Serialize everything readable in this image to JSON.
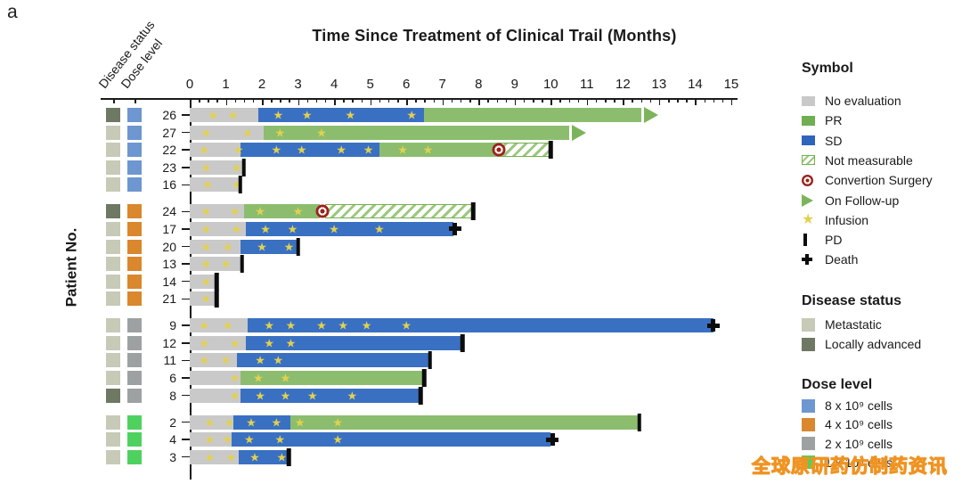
{
  "panel_label": "a",
  "title": "Time Since Treatment of Clinical Trail (Months)",
  "y_axis_label": "Patient No.",
  "column_headers": [
    "Disease status",
    "Dose level"
  ],
  "watermark": "全球原研药仿制药资讯",
  "colors": {
    "no_evaluation": "#c9c9c9",
    "pr": "#8cbd6f",
    "sd": "#3a70c2",
    "legend_pr": "#6fae51",
    "legend_sd": "#2f64bb",
    "infusion_star": "#e3d14e",
    "surgery_red": "#9b231c",
    "followup_green": "#7cb45c",
    "disease_metastatic": "#c6cab6",
    "disease_locally_advanced": "#6e7863",
    "dose_8e9": "#6e96d0",
    "dose_4e9": "#da872d",
    "dose_2e9": "#9da1a2",
    "dose_1e9": "#4fd15f",
    "marker_black": "#0c0c0c"
  },
  "legend": {
    "symbol": {
      "title": "Symbol",
      "items": [
        {
          "icon": "no-evaluation-swatch",
          "label": "No evaluation"
        },
        {
          "icon": "pr-swatch",
          "label": "PR"
        },
        {
          "icon": "sd-swatch",
          "label": "SD"
        },
        {
          "icon": "not-measurable-swatch",
          "label": "Not measurable"
        },
        {
          "icon": "conversion-surgery-icon",
          "label": "Convertion Surgery"
        },
        {
          "icon": "on-follow-up-icon",
          "label": "On Follow-up"
        },
        {
          "icon": "infusion-star-icon",
          "label": "Infusion"
        },
        {
          "icon": "pd-icon",
          "label": "PD"
        },
        {
          "icon": "death-icon",
          "label": "Death"
        }
      ]
    },
    "disease_status": {
      "title": "Disease status",
      "items": [
        {
          "icon": "metastatic-swatch",
          "label": "Metastatic",
          "color": "#c6cab6"
        },
        {
          "icon": "locally-advanced-swatch",
          "label": "Locally advanced",
          "color": "#6e7863"
        }
      ]
    },
    "dose_level": {
      "title": "Dose level",
      "items": [
        {
          "icon": "dose-8e9-swatch",
          "label": "8 x 10⁹ cells",
          "color": "#6e96d0"
        },
        {
          "icon": "dose-4e9-swatch",
          "label": "4 x 10⁹ cells",
          "color": "#da872d"
        },
        {
          "icon": "dose-2e9-swatch",
          "label": "2 x 10⁹ cells",
          "color": "#9da1a2"
        },
        {
          "icon": "dose-1e9-swatch",
          "label": "1 x 10⁹ cells",
          "color": "#4fd15f"
        }
      ]
    }
  },
  "chart_data": {
    "type": "swimmer-plot",
    "x_axis": {
      "min": 0,
      "max": 15,
      "major_step": 1,
      "minor_step": 0.25,
      "tick_labels": [
        "0",
        "1",
        "2",
        "3",
        "4",
        "5",
        "6",
        "7",
        "8",
        "9",
        "10",
        "11",
        "12",
        "13",
        "14",
        "15"
      ]
    },
    "status_keys": {
      "ne": "no_evaluation",
      "sd": "sd",
      "pr": "pr",
      "nm": "not_measurable"
    },
    "patients": [
      {
        "patient": "26",
        "group": 0,
        "disease": "locally_advanced",
        "dose": "8e9",
        "segments": [
          {
            "s": "ne",
            "a": 0,
            "b": 1.9
          },
          {
            "s": "sd",
            "a": 1.9,
            "b": 6.5
          },
          {
            "s": "pr",
            "a": 6.5,
            "b": 12.5
          }
        ],
        "infusions": [
          0.65,
          1.2,
          2.45,
          3.25,
          4.45,
          6.15
        ],
        "markers": [
          {
            "type": "on_follow_up",
            "x": 12.5
          }
        ]
      },
      {
        "patient": "27",
        "group": 0,
        "disease": "metastatic",
        "dose": "8e9",
        "segments": [
          {
            "s": "ne",
            "a": 0,
            "b": 2.05
          },
          {
            "s": "pr",
            "a": 2.05,
            "b": 10.5
          }
        ],
        "infusions": [
          0.45,
          1.6,
          2.5,
          3.65
        ],
        "markers": [
          {
            "type": "on_follow_up",
            "x": 10.5
          }
        ]
      },
      {
        "patient": "22",
        "group": 0,
        "disease": "metastatic",
        "dose": "8e9",
        "segments": [
          {
            "s": "ne",
            "a": 0,
            "b": 1.4
          },
          {
            "s": "sd",
            "a": 1.4,
            "b": 5.25
          },
          {
            "s": "pr",
            "a": 5.25,
            "b": 8.5
          },
          {
            "s": "nm",
            "a": 8.5,
            "b": 10.0
          }
        ],
        "infusions": [
          0.4,
          1.35,
          2.4,
          3.1,
          4.2,
          4.95,
          5.9,
          6.6
        ],
        "markers": [
          {
            "type": "conversion_surgery",
            "x": 8.55
          },
          {
            "type": "pd",
            "x": 10.0
          }
        ]
      },
      {
        "patient": "23",
        "group": 0,
        "disease": "metastatic",
        "dose": "8e9",
        "segments": [
          {
            "s": "ne",
            "a": 0,
            "b": 1.5
          }
        ],
        "infusions": [
          0.45,
          1.3
        ],
        "markers": [
          {
            "type": "pd",
            "x": 1.5
          }
        ]
      },
      {
        "patient": "16",
        "group": 0,
        "disease": "metastatic",
        "dose": "8e9",
        "segments": [
          {
            "s": "ne",
            "a": 0,
            "b": 1.4
          }
        ],
        "infusions": [
          0.5,
          1.3
        ],
        "markers": [
          {
            "type": "pd",
            "x": 1.4
          }
        ]
      },
      {
        "patient": "24",
        "group": 1,
        "disease": "locally_advanced",
        "dose": "4e9",
        "segments": [
          {
            "s": "ne",
            "a": 0,
            "b": 1.5
          },
          {
            "s": "pr",
            "a": 1.5,
            "b": 3.6
          },
          {
            "s": "nm",
            "a": 3.75,
            "b": 7.85
          }
        ],
        "infusions": [
          0.45,
          1.25,
          1.95,
          3.0
        ],
        "markers": [
          {
            "type": "conversion_surgery",
            "x": 3.67
          },
          {
            "type": "pd",
            "x": 7.85
          }
        ]
      },
      {
        "patient": "17",
        "group": 1,
        "disease": "metastatic",
        "dose": "4e9",
        "segments": [
          {
            "s": "ne",
            "a": 0,
            "b": 1.55
          },
          {
            "s": "sd",
            "a": 1.55,
            "b": 7.3
          }
        ],
        "infusions": [
          0.45,
          1.3,
          2.1,
          2.85,
          4.0,
          5.25
        ],
        "markers": [
          {
            "type": "death",
            "x": 7.35
          }
        ]
      },
      {
        "patient": "20",
        "group": 1,
        "disease": "metastatic",
        "dose": "4e9",
        "segments": [
          {
            "s": "ne",
            "a": 0,
            "b": 1.4
          },
          {
            "s": "sd",
            "a": 1.4,
            "b": 3.0
          }
        ],
        "infusions": [
          0.45,
          1.05,
          2.0,
          2.75
        ],
        "markers": [
          {
            "type": "pd",
            "x": 3.0
          }
        ]
      },
      {
        "patient": "13",
        "group": 1,
        "disease": "metastatic",
        "dose": "4e9",
        "segments": [
          {
            "s": "ne",
            "a": 0,
            "b": 1.45
          }
        ],
        "infusions": [
          0.45,
          1.0
        ],
        "markers": [
          {
            "type": "pd",
            "x": 1.45
          }
        ]
      },
      {
        "patient": "14",
        "group": 1,
        "disease": "metastatic",
        "dose": "4e9",
        "segments": [
          {
            "s": "ne",
            "a": 0,
            "b": 0.75
          }
        ],
        "infusions": [
          0.45
        ],
        "markers": [
          {
            "type": "pd",
            "x": 0.75
          }
        ]
      },
      {
        "patient": "21",
        "group": 1,
        "disease": "metastatic",
        "dose": "4e9",
        "segments": [
          {
            "s": "ne",
            "a": 0,
            "b": 0.75
          }
        ],
        "infusions": [
          0.45
        ],
        "markers": [
          {
            "type": "pd",
            "x": 0.75
          }
        ]
      },
      {
        "patient": "9",
        "group": 2,
        "disease": "metastatic",
        "dose": "2e9",
        "segments": [
          {
            "s": "ne",
            "a": 0,
            "b": 1.6
          },
          {
            "s": "sd",
            "a": 1.6,
            "b": 14.5
          }
        ],
        "infusions": [
          0.4,
          1.05,
          2.2,
          2.8,
          3.65,
          4.25,
          4.9,
          6.0
        ],
        "markers": [
          {
            "type": "death",
            "x": 14.5
          }
        ]
      },
      {
        "patient": "12",
        "group": 2,
        "disease": "metastatic",
        "dose": "2e9",
        "segments": [
          {
            "s": "ne",
            "a": 0,
            "b": 1.55
          },
          {
            "s": "sd",
            "a": 1.55,
            "b": 7.55
          }
        ],
        "infusions": [
          0.4,
          1.25,
          2.2,
          2.8
        ],
        "markers": [
          {
            "type": "pd",
            "x": 7.55
          }
        ]
      },
      {
        "patient": "11",
        "group": 2,
        "disease": "metastatic",
        "dose": "2e9",
        "segments": [
          {
            "s": "ne",
            "a": 0,
            "b": 1.3
          },
          {
            "s": "sd",
            "a": 1.3,
            "b": 6.65
          }
        ],
        "infusions": [
          0.4,
          1.0,
          1.95,
          2.45
        ],
        "markers": [
          {
            "type": "pd",
            "x": 6.65
          }
        ]
      },
      {
        "patient": "6",
        "group": 2,
        "disease": "metastatic",
        "dose": "2e9",
        "segments": [
          {
            "s": "ne",
            "a": 0,
            "b": 1.4
          },
          {
            "s": "pr",
            "a": 1.4,
            "b": 6.5
          }
        ],
        "infusions": [
          1.25,
          1.9,
          2.65
        ],
        "markers": [
          {
            "type": "pd",
            "x": 6.5
          }
        ]
      },
      {
        "patient": "8",
        "group": 2,
        "disease": "locally_advanced",
        "dose": "2e9",
        "segments": [
          {
            "s": "ne",
            "a": 0,
            "b": 1.4
          },
          {
            "s": "sd",
            "a": 1.4,
            "b": 6.4
          }
        ],
        "infusions": [
          1.25,
          1.95,
          2.65,
          3.4,
          4.5
        ],
        "markers": [
          {
            "type": "pd",
            "x": 6.4
          }
        ]
      },
      {
        "patient": "2",
        "group": 3,
        "disease": "metastatic",
        "dose": "1e9",
        "segments": [
          {
            "s": "ne",
            "a": 0,
            "b": 1.2
          },
          {
            "s": "sd",
            "a": 1.2,
            "b": 2.8
          },
          {
            "s": "pr",
            "a": 2.8,
            "b": 12.45
          }
        ],
        "infusions": [
          0.55,
          1.1,
          1.7,
          2.4,
          3.05,
          4.1
        ],
        "markers": [
          {
            "type": "pd",
            "x": 12.45
          }
        ]
      },
      {
        "patient": "4",
        "group": 3,
        "disease": "metastatic",
        "dose": "1e9",
        "segments": [
          {
            "s": "ne",
            "a": 0,
            "b": 1.15
          },
          {
            "s": "sd",
            "a": 1.15,
            "b": 10.0
          }
        ],
        "infusions": [
          0.55,
          1.05,
          1.65,
          2.5,
          4.1
        ],
        "markers": [
          {
            "type": "death",
            "x": 10.05
          }
        ]
      },
      {
        "patient": "3",
        "group": 3,
        "disease": "metastatic",
        "dose": "1e9",
        "segments": [
          {
            "s": "ne",
            "a": 0,
            "b": 1.35
          },
          {
            "s": "sd",
            "a": 1.35,
            "b": 2.75
          }
        ],
        "infusions": [
          0.55,
          1.15,
          1.8,
          2.55
        ],
        "markers": [
          {
            "type": "pd",
            "x": 2.75
          }
        ]
      }
    ]
  }
}
